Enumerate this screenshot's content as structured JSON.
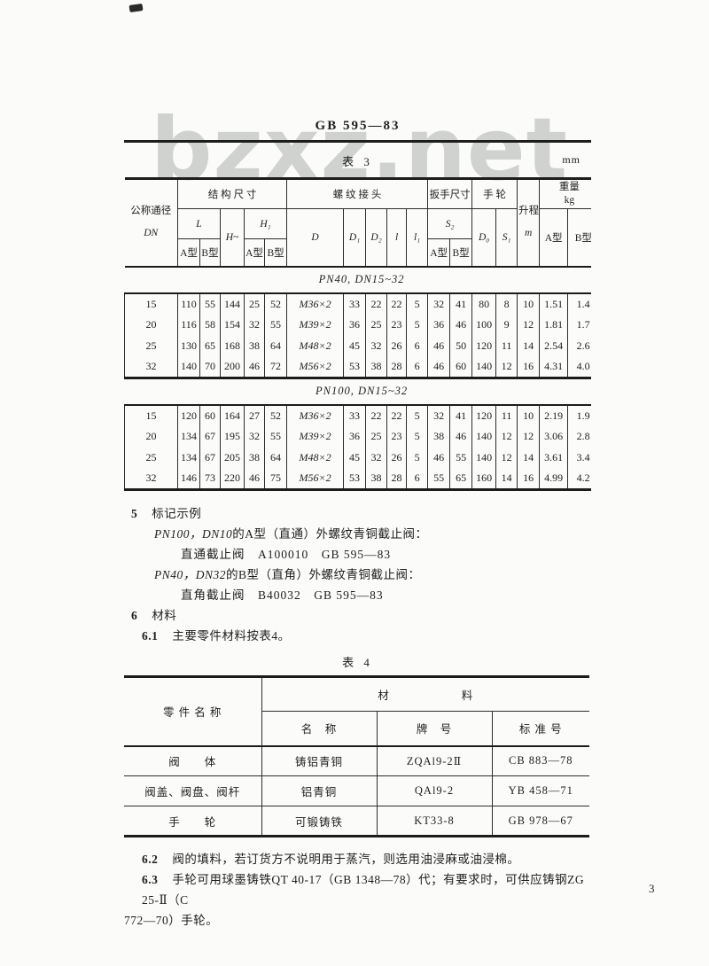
{
  "watermark": "bzxz.net",
  "doc_number": "GB 595—83",
  "table3": {
    "caption": "表 3",
    "unit": "mm",
    "header": {
      "dn_line1": "公称通径",
      "dn_line2": "DN",
      "structure": "结 构 尺 寸",
      "L": "L",
      "H": "H~",
      "H1": "H₁",
      "thread": "螺 纹 接 头",
      "D": "D",
      "D1": "D₁",
      "D2": "D₂",
      "l": "l",
      "l1": "l₁",
      "wrench": "扳手尺寸",
      "S2": "S₂",
      "handwheel": "手 轮",
      "D0": "D₀",
      "S1": "S₁",
      "lift_line1": "升程",
      "lift_line2": "m",
      "weight_line1": "重量",
      "weight_line2": "kg",
      "typeA": "A型",
      "typeB": "B型"
    },
    "sections": [
      {
        "title": "PN40, DN15~32",
        "rows": [
          [
            "15",
            "110",
            "55",
            "144",
            "25",
            "52",
            "M36×2",
            "33",
            "22",
            "22",
            "5",
            "32",
            "41",
            "80",
            "8",
            "10",
            "1.51",
            "1.4"
          ],
          [
            "20",
            "116",
            "58",
            "154",
            "32",
            "55",
            "M39×2",
            "36",
            "25",
            "23",
            "5",
            "36",
            "46",
            "100",
            "9",
            "12",
            "1.81",
            "1.7"
          ],
          [
            "25",
            "130",
            "65",
            "168",
            "38",
            "64",
            "M48×2",
            "45",
            "32",
            "26",
            "6",
            "46",
            "50",
            "120",
            "11",
            "14",
            "2.54",
            "2.6"
          ],
          [
            "32",
            "140",
            "70",
            "200",
            "46",
            "72",
            "M56×2",
            "53",
            "38",
            "28",
            "6",
            "46",
            "60",
            "140",
            "12",
            "16",
            "4.31",
            "4.0"
          ]
        ]
      },
      {
        "title": "PN100, DN15~32",
        "rows": [
          [
            "15",
            "120",
            "60",
            "164",
            "27",
            "52",
            "M36×2",
            "33",
            "22",
            "22",
            "5",
            "32",
            "41",
            "120",
            "11",
            "10",
            "2.19",
            "1.9"
          ],
          [
            "20",
            "134",
            "67",
            "195",
            "32",
            "55",
            "M39×2",
            "36",
            "25",
            "23",
            "5",
            "38",
            "46",
            "140",
            "12",
            "12",
            "3.06",
            "2.8"
          ],
          [
            "25",
            "134",
            "67",
            "205",
            "38",
            "64",
            "M48×2",
            "45",
            "32",
            "26",
            "5",
            "46",
            "55",
            "140",
            "12",
            "14",
            "3.61",
            "3.4"
          ],
          [
            "32",
            "146",
            "73",
            "220",
            "46",
            "75",
            "M56×2",
            "53",
            "38",
            "28",
            "6",
            "55",
            "65",
            "160",
            "14",
            "16",
            "4.99",
            "4.2"
          ]
        ]
      }
    ]
  },
  "mark_section": {
    "num": "5",
    "title": "标记示例",
    "example1_spec": "PN100，DN10",
    "example1_rest": "的A型（直通）外螺纹青铜截止阀：",
    "example1_designation": "直通截止阀　A100010　GB 595—83",
    "example2_spec": "PN40，DN32",
    "example2_rest": "的B型（直角）外螺纹青铜截止阀：",
    "example2_designation": "直角截止阀　B40032　GB 595—83"
  },
  "material_section": {
    "num": "6",
    "title": "材料",
    "clause61_num": "6.1",
    "clause61_text": "主要零件材料按表4。"
  },
  "table4": {
    "caption": "表 4",
    "header": {
      "part": "零 件 名 称",
      "material": "材　　　　　　料",
      "name": "名　称",
      "grade": "牌　号",
      "standard": "标 准 号"
    },
    "rows": [
      [
        "阀　　体",
        "铸铝青铜",
        "ZQAl9-2Ⅱ",
        "CB 883—78"
      ],
      [
        "阀盖、阀盘、阀杆",
        "铝青铜",
        "QAl9-2",
        "YB 458—71"
      ],
      [
        "手　　轮",
        "可锻铸铁",
        "KT33-8",
        "GB 978—67"
      ]
    ]
  },
  "notes": {
    "n62_num": "6.2",
    "n62_text": "阀的填料，若订货方不说明用于蒸汽，则选用油浸麻或油浸棉。",
    "n63_num": "6.3",
    "n63_text": "手轮可用球墨铸铁QT 40-17（GB 1348—78）代；有要求时，可供应铸钢ZG 25-Ⅱ（C",
    "n63_cont": "772—70）手轮。"
  },
  "page_number": "3"
}
